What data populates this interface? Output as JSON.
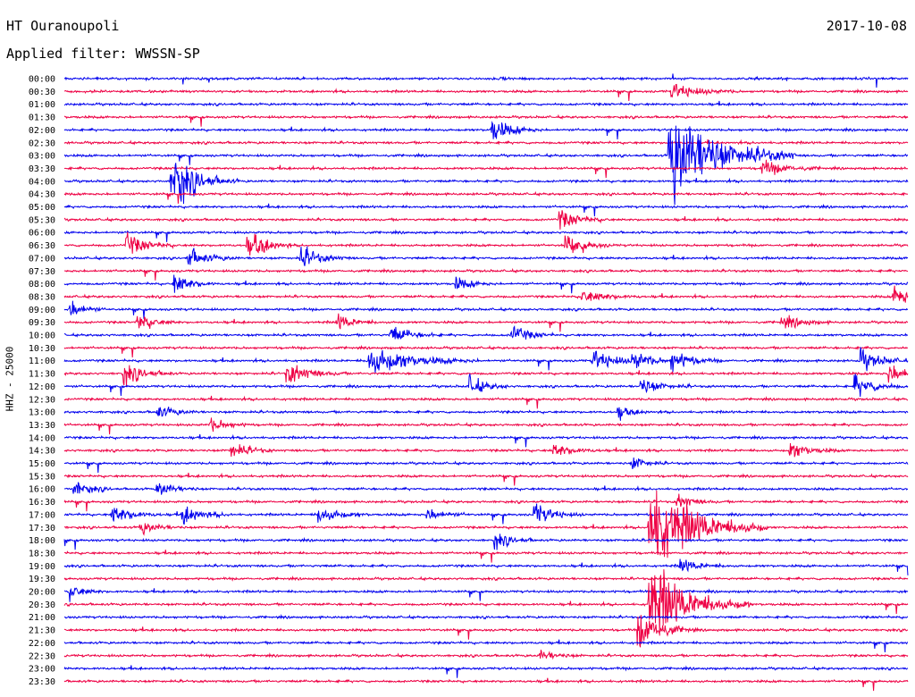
{
  "header": {
    "station": "HT Ouranoupoli",
    "date": "2017-10-08",
    "filter": "Applied filter: WWSSN-SP"
  },
  "chart_data": {
    "type": "line",
    "subtype": "helicorder",
    "ylabel": "HHZ - 25000",
    "row_labels": [
      "00:00",
      "00:30",
      "01:00",
      "01:30",
      "02:00",
      "02:30",
      "03:00",
      "03:30",
      "04:00",
      "04:30",
      "05:00",
      "05:30",
      "06:00",
      "06:30",
      "07:00",
      "07:30",
      "08:00",
      "08:30",
      "09:00",
      "09:30",
      "10:00",
      "10:30",
      "11:00",
      "11:30",
      "12:00",
      "12:30",
      "13:00",
      "13:30",
      "14:00",
      "14:30",
      "15:00",
      "15:30",
      "16:00",
      "16:30",
      "17:00",
      "17:30",
      "18:00",
      "18:30",
      "19:00",
      "19:30",
      "20:00",
      "20:30",
      "21:00",
      "21:30",
      "22:00",
      "22:30",
      "23:00",
      "23:30"
    ],
    "series_colors": [
      "#0000ee",
      "#ee0044"
    ],
    "row_span_minutes": 30,
    "events": [
      {
        "row": 6,
        "minute": 21.5,
        "amplitude": 3.5,
        "duration": 1.5
      },
      {
        "row": 8,
        "minute": 3.8,
        "amplitude": 1.2,
        "duration": 0.8
      },
      {
        "row": 8,
        "minute": 3.9,
        "amplitude": 1.0,
        "duration": 0.6
      },
      {
        "row": 4,
        "minute": 15.2,
        "amplitude": 0.9,
        "duration": 0.6
      },
      {
        "row": 1,
        "minute": 21.6,
        "amplitude": 0.6,
        "duration": 0.8
      },
      {
        "row": 7,
        "minute": 24.8,
        "amplitude": 0.6,
        "duration": 0.7
      },
      {
        "row": 11,
        "minute": 17.6,
        "amplitude": 0.7,
        "duration": 0.6
      },
      {
        "row": 13,
        "minute": 2.2,
        "amplitude": 0.8,
        "duration": 0.6
      },
      {
        "row": 13,
        "minute": 6.5,
        "amplitude": 0.6,
        "duration": 0.5
      },
      {
        "row": 13,
        "minute": 6.7,
        "amplitude": 0.6,
        "duration": 0.5
      },
      {
        "row": 13,
        "minute": 17.8,
        "amplitude": 0.7,
        "duration": 0.6
      },
      {
        "row": 14,
        "minute": 4.4,
        "amplitude": 0.7,
        "duration": 0.6
      },
      {
        "row": 14,
        "minute": 8.4,
        "amplitude": 0.8,
        "duration": 0.6
      },
      {
        "row": 16,
        "minute": 3.9,
        "amplitude": 0.8,
        "duration": 0.5
      },
      {
        "row": 16,
        "minute": 13.9,
        "amplitude": 0.5,
        "duration": 0.5
      },
      {
        "row": 17,
        "minute": 18.4,
        "amplitude": 0.5,
        "duration": 0.7
      },
      {
        "row": 17,
        "minute": 29.5,
        "amplitude": 0.9,
        "duration": 0.6
      },
      {
        "row": 18,
        "minute": 0.2,
        "amplitude": 0.8,
        "duration": 0.4
      },
      {
        "row": 19,
        "minute": 2.6,
        "amplitude": 0.7,
        "duration": 0.5
      },
      {
        "row": 19,
        "minute": 9.7,
        "amplitude": 0.6,
        "duration": 0.5
      },
      {
        "row": 19,
        "minute": 25.5,
        "amplitude": 0.5,
        "duration": 0.6
      },
      {
        "row": 20,
        "minute": 11.6,
        "amplitude": 0.7,
        "duration": 0.6
      },
      {
        "row": 20,
        "minute": 15.9,
        "amplitude": 0.7,
        "duration": 0.5
      },
      {
        "row": 22,
        "minute": 10.8,
        "amplitude": 1.1,
        "duration": 1.3
      },
      {
        "row": 22,
        "minute": 18.8,
        "amplitude": 0.8,
        "duration": 0.7
      },
      {
        "row": 22,
        "minute": 20.2,
        "amplitude": 0.7,
        "duration": 0.6
      },
      {
        "row": 22,
        "minute": 21.6,
        "amplitude": 0.8,
        "duration": 0.6
      },
      {
        "row": 22,
        "minute": 28.3,
        "amplitude": 0.8,
        "duration": 0.6
      },
      {
        "row": 23,
        "minute": 2.1,
        "amplitude": 0.8,
        "duration": 0.6
      },
      {
        "row": 23,
        "minute": 7.9,
        "amplitude": 0.8,
        "duration": 0.7
      },
      {
        "row": 23,
        "minute": 29.3,
        "amplitude": 0.8,
        "duration": 0.6
      },
      {
        "row": 24,
        "minute": 14.4,
        "amplitude": 0.7,
        "duration": 0.5
      },
      {
        "row": 24,
        "minute": 20.5,
        "amplitude": 0.6,
        "duration": 0.6
      },
      {
        "row": 24,
        "minute": 28.1,
        "amplitude": 0.8,
        "duration": 0.6
      },
      {
        "row": 26,
        "minute": 3.3,
        "amplitude": 0.5,
        "duration": 0.5
      },
      {
        "row": 26,
        "minute": 19.7,
        "amplitude": 0.5,
        "duration": 0.4
      },
      {
        "row": 27,
        "minute": 5.2,
        "amplitude": 0.5,
        "duration": 0.5
      },
      {
        "row": 29,
        "minute": 5.9,
        "amplitude": 0.7,
        "duration": 0.5
      },
      {
        "row": 29,
        "minute": 17.4,
        "amplitude": 0.5,
        "duration": 0.6
      },
      {
        "row": 29,
        "minute": 25.8,
        "amplitude": 0.6,
        "duration": 0.6
      },
      {
        "row": 30,
        "minute": 20.2,
        "amplitude": 0.6,
        "duration": 0.4
      },
      {
        "row": 32,
        "minute": 0.3,
        "amplitude": 0.6,
        "duration": 0.5
      },
      {
        "row": 32,
        "minute": 3.3,
        "amplitude": 0.6,
        "duration": 0.5
      },
      {
        "row": 33,
        "minute": 21.8,
        "amplitude": 0.5,
        "duration": 0.5
      },
      {
        "row": 34,
        "minute": 1.7,
        "amplitude": 0.7,
        "duration": 0.6
      },
      {
        "row": 34,
        "minute": 4.2,
        "amplitude": 0.7,
        "duration": 0.6
      },
      {
        "row": 34,
        "minute": 9.0,
        "amplitude": 0.7,
        "duration": 0.6
      },
      {
        "row": 34,
        "minute": 12.9,
        "amplitude": 0.5,
        "duration": 0.5
      },
      {
        "row": 34,
        "minute": 16.7,
        "amplitude": 0.8,
        "duration": 0.6
      },
      {
        "row": 35,
        "minute": 2.7,
        "amplitude": 0.5,
        "duration": 0.5
      },
      {
        "row": 35,
        "minute": 20.8,
        "amplitude": 3.5,
        "duration": 1.4
      },
      {
        "row": 36,
        "minute": 15.3,
        "amplitude": 0.6,
        "duration": 0.5
      },
      {
        "row": 38,
        "minute": 21.9,
        "amplitude": 0.5,
        "duration": 0.6
      },
      {
        "row": 40,
        "minute": 0.2,
        "amplitude": 0.6,
        "duration": 0.4
      },
      {
        "row": 41,
        "minute": 20.8,
        "amplitude": 3.0,
        "duration": 1.2
      },
      {
        "row": 43,
        "minute": 20.4,
        "amplitude": 1.5,
        "duration": 0.7
      },
      {
        "row": 45,
        "minute": 16.9,
        "amplitude": 0.4,
        "duration": 0.5
      }
    ]
  }
}
